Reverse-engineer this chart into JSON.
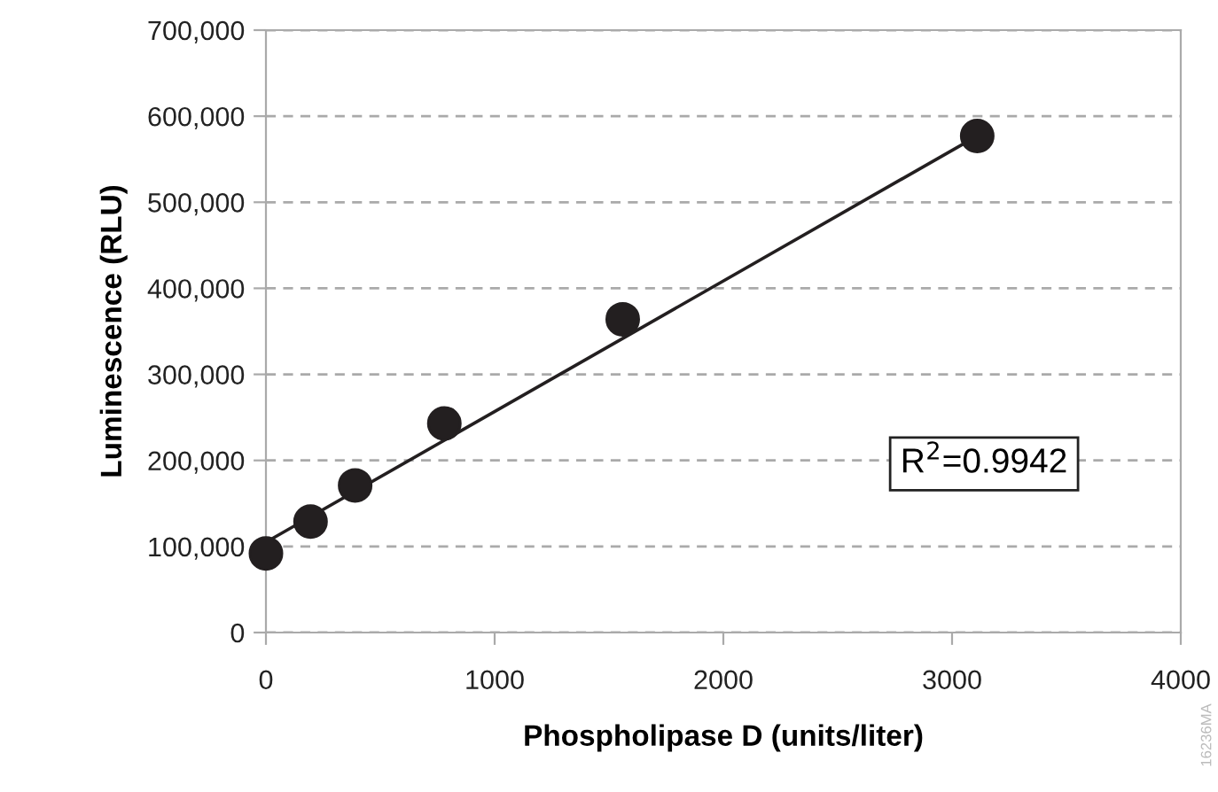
{
  "chart_data": {
    "type": "scatter",
    "xlabel": "Phospholipase D (units/liter)",
    "ylabel": "Luminescence (RLU)",
    "x": [
      0,
      195,
      390,
      780,
      1560,
      3110
    ],
    "series": [
      {
        "color": "#231f20",
        "values": [
          92000,
          129000,
          171000,
          243000,
          364000,
          577000
        ],
        "marker": "circle"
      },
      {
        "type": "line",
        "color": "#231f20",
        "x": [
          0,
          3110
        ],
        "values": [
          105000,
          577000
        ],
        "marker": "none",
        "line_style": "solid"
      }
    ],
    "xlim": [
      0,
      4000
    ],
    "xticks": [
      0,
      1000,
      2000,
      3000,
      4000
    ],
    "ylim": [
      0,
      700000
    ],
    "yticks": [
      0,
      {
        "value": 100000,
        "label": "100,000"
      },
      {
        "value": 200000,
        "label": "200,000"
      },
      {
        "value": 300000,
        "label": "300,000"
      },
      {
        "value": 400000,
        "label": "400,000"
      },
      {
        "value": 500000,
        "label": "500,000"
      },
      {
        "value": 600000,
        "label": "600,000"
      },
      {
        "value": 700000,
        "label": "700,000"
      }
    ],
    "grid": "y",
    "legend": false,
    "annotations": [
      "R$^{2}$=0.9942",
      "16236MA"
    ]
  }
}
